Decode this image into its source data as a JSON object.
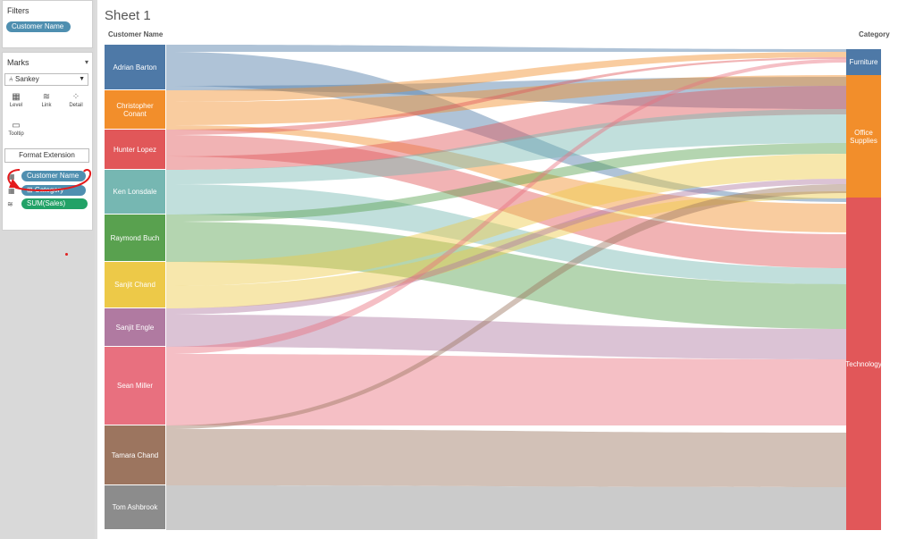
{
  "filters": {
    "title": "Filters",
    "pill": "Customer Name"
  },
  "marks": {
    "title": "Marks",
    "mark_type": "Sankey",
    "buttons": [
      {
        "label": "Level",
        "icon": "level-icon"
      },
      {
        "label": "Link",
        "icon": "link-icon"
      },
      {
        "label": "Detail",
        "icon": "detail-icon"
      },
      {
        "label": "Tooltip",
        "icon": "tooltip-icon"
      }
    ],
    "format_extension": "Format Extension",
    "fields": [
      "Customer Name",
      "⊞ Category",
      "SUM(Sales)"
    ]
  },
  "sheet": {
    "title": "Sheet 1",
    "left_axis": "Customer Name",
    "right_axis": "Category",
    "customers": [
      {
        "name": "Adrian Barton",
        "color": "#4e79a7"
      },
      {
        "name": "Christopher Conant",
        "color": "#f28e2b"
      },
      {
        "name": "Hunter Lopez",
        "color": "#e15759"
      },
      {
        "name": "Ken Lonsdale",
        "color": "#76b7b2"
      },
      {
        "name": "Raymond Buch",
        "color": "#59a14f"
      },
      {
        "name": "Sanjit Chand",
        "color": "#edc948"
      },
      {
        "name": "Sanjit Engle",
        "color": "#b07aa1"
      },
      {
        "name": "Sean Miller",
        "color": "#e8707f"
      },
      {
        "name": "Tamara Chand",
        "color": "#9c755f"
      },
      {
        "name": "Tom Ashbrook",
        "color": "#8c8c8c"
      }
    ],
    "categories": [
      {
        "name": "Furniture",
        "color": "#4e79a7"
      },
      {
        "name": "Office Supplies",
        "color": "#f28e2b"
      },
      {
        "name": "Technology",
        "color": "#e15759"
      }
    ]
  }
}
